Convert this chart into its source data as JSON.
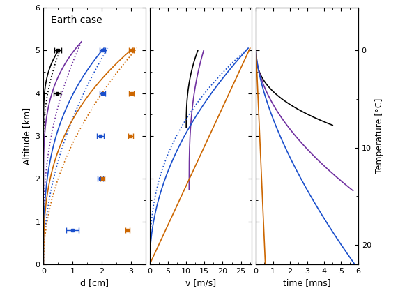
{
  "title": "Earth case",
  "colors": {
    "black": "#000000",
    "purple": "#7030A0",
    "blue": "#1a4fcc",
    "orange": "#cc6600"
  },
  "panel1": {
    "xlim": [
      0,
      3.5
    ],
    "ylim": [
      0,
      6
    ],
    "xlabel": "d [cm]",
    "ylabel": "Altitude [km]",
    "xticks_major": 1,
    "yticks_major": 1,
    "black_eb": [
      {
        "alt": 5.0,
        "d": 0.5,
        "d_err": 0.12
      },
      {
        "alt": 4.0,
        "d": 0.47,
        "d_err": 0.12
      },
      {
        "alt": 3.0,
        "d": 0.0,
        "d_err": 0.0,
        "cap_only_left": true
      }
    ],
    "blue_eb": [
      {
        "alt": 5.0,
        "d": 2.02,
        "d_err": 0.1
      },
      {
        "alt": 4.0,
        "d": 2.02,
        "d_err": 0.1
      },
      {
        "alt": 3.0,
        "d": 1.95,
        "d_err": 0.12
      },
      {
        "alt": 2.0,
        "d": 1.95,
        "d_err": 0.1
      },
      {
        "alt": 0.8,
        "d": 1.0,
        "d_err": 0.22
      }
    ],
    "orange_eb": [
      {
        "alt": 5.0,
        "d": 3.02,
        "d_err": 0.08
      },
      {
        "alt": 4.0,
        "d": 3.02,
        "d_err": 0.08
      },
      {
        "alt": 3.0,
        "d": 2.98,
        "d_err": 0.08
      },
      {
        "alt": 2.0,
        "d": 2.02,
        "d_err": 0.08
      },
      {
        "alt": 0.8,
        "d": 2.88,
        "d_err": 0.08
      }
    ]
  },
  "panel2": {
    "xlim": [
      0,
      28
    ],
    "xlabel": "v [m/s]",
    "xticks_major": 5
  },
  "panel3": {
    "xlim": [
      0,
      6
    ],
    "xlabel": "time [mns]",
    "xticks_major": 1,
    "temp_ticks": [
      0,
      10,
      20
    ],
    "temp_ylabel": "Temperature [°C]",
    "temp_alt_at_0C": 5.0,
    "temp_lapse_alt_per_degC": 0.227
  }
}
